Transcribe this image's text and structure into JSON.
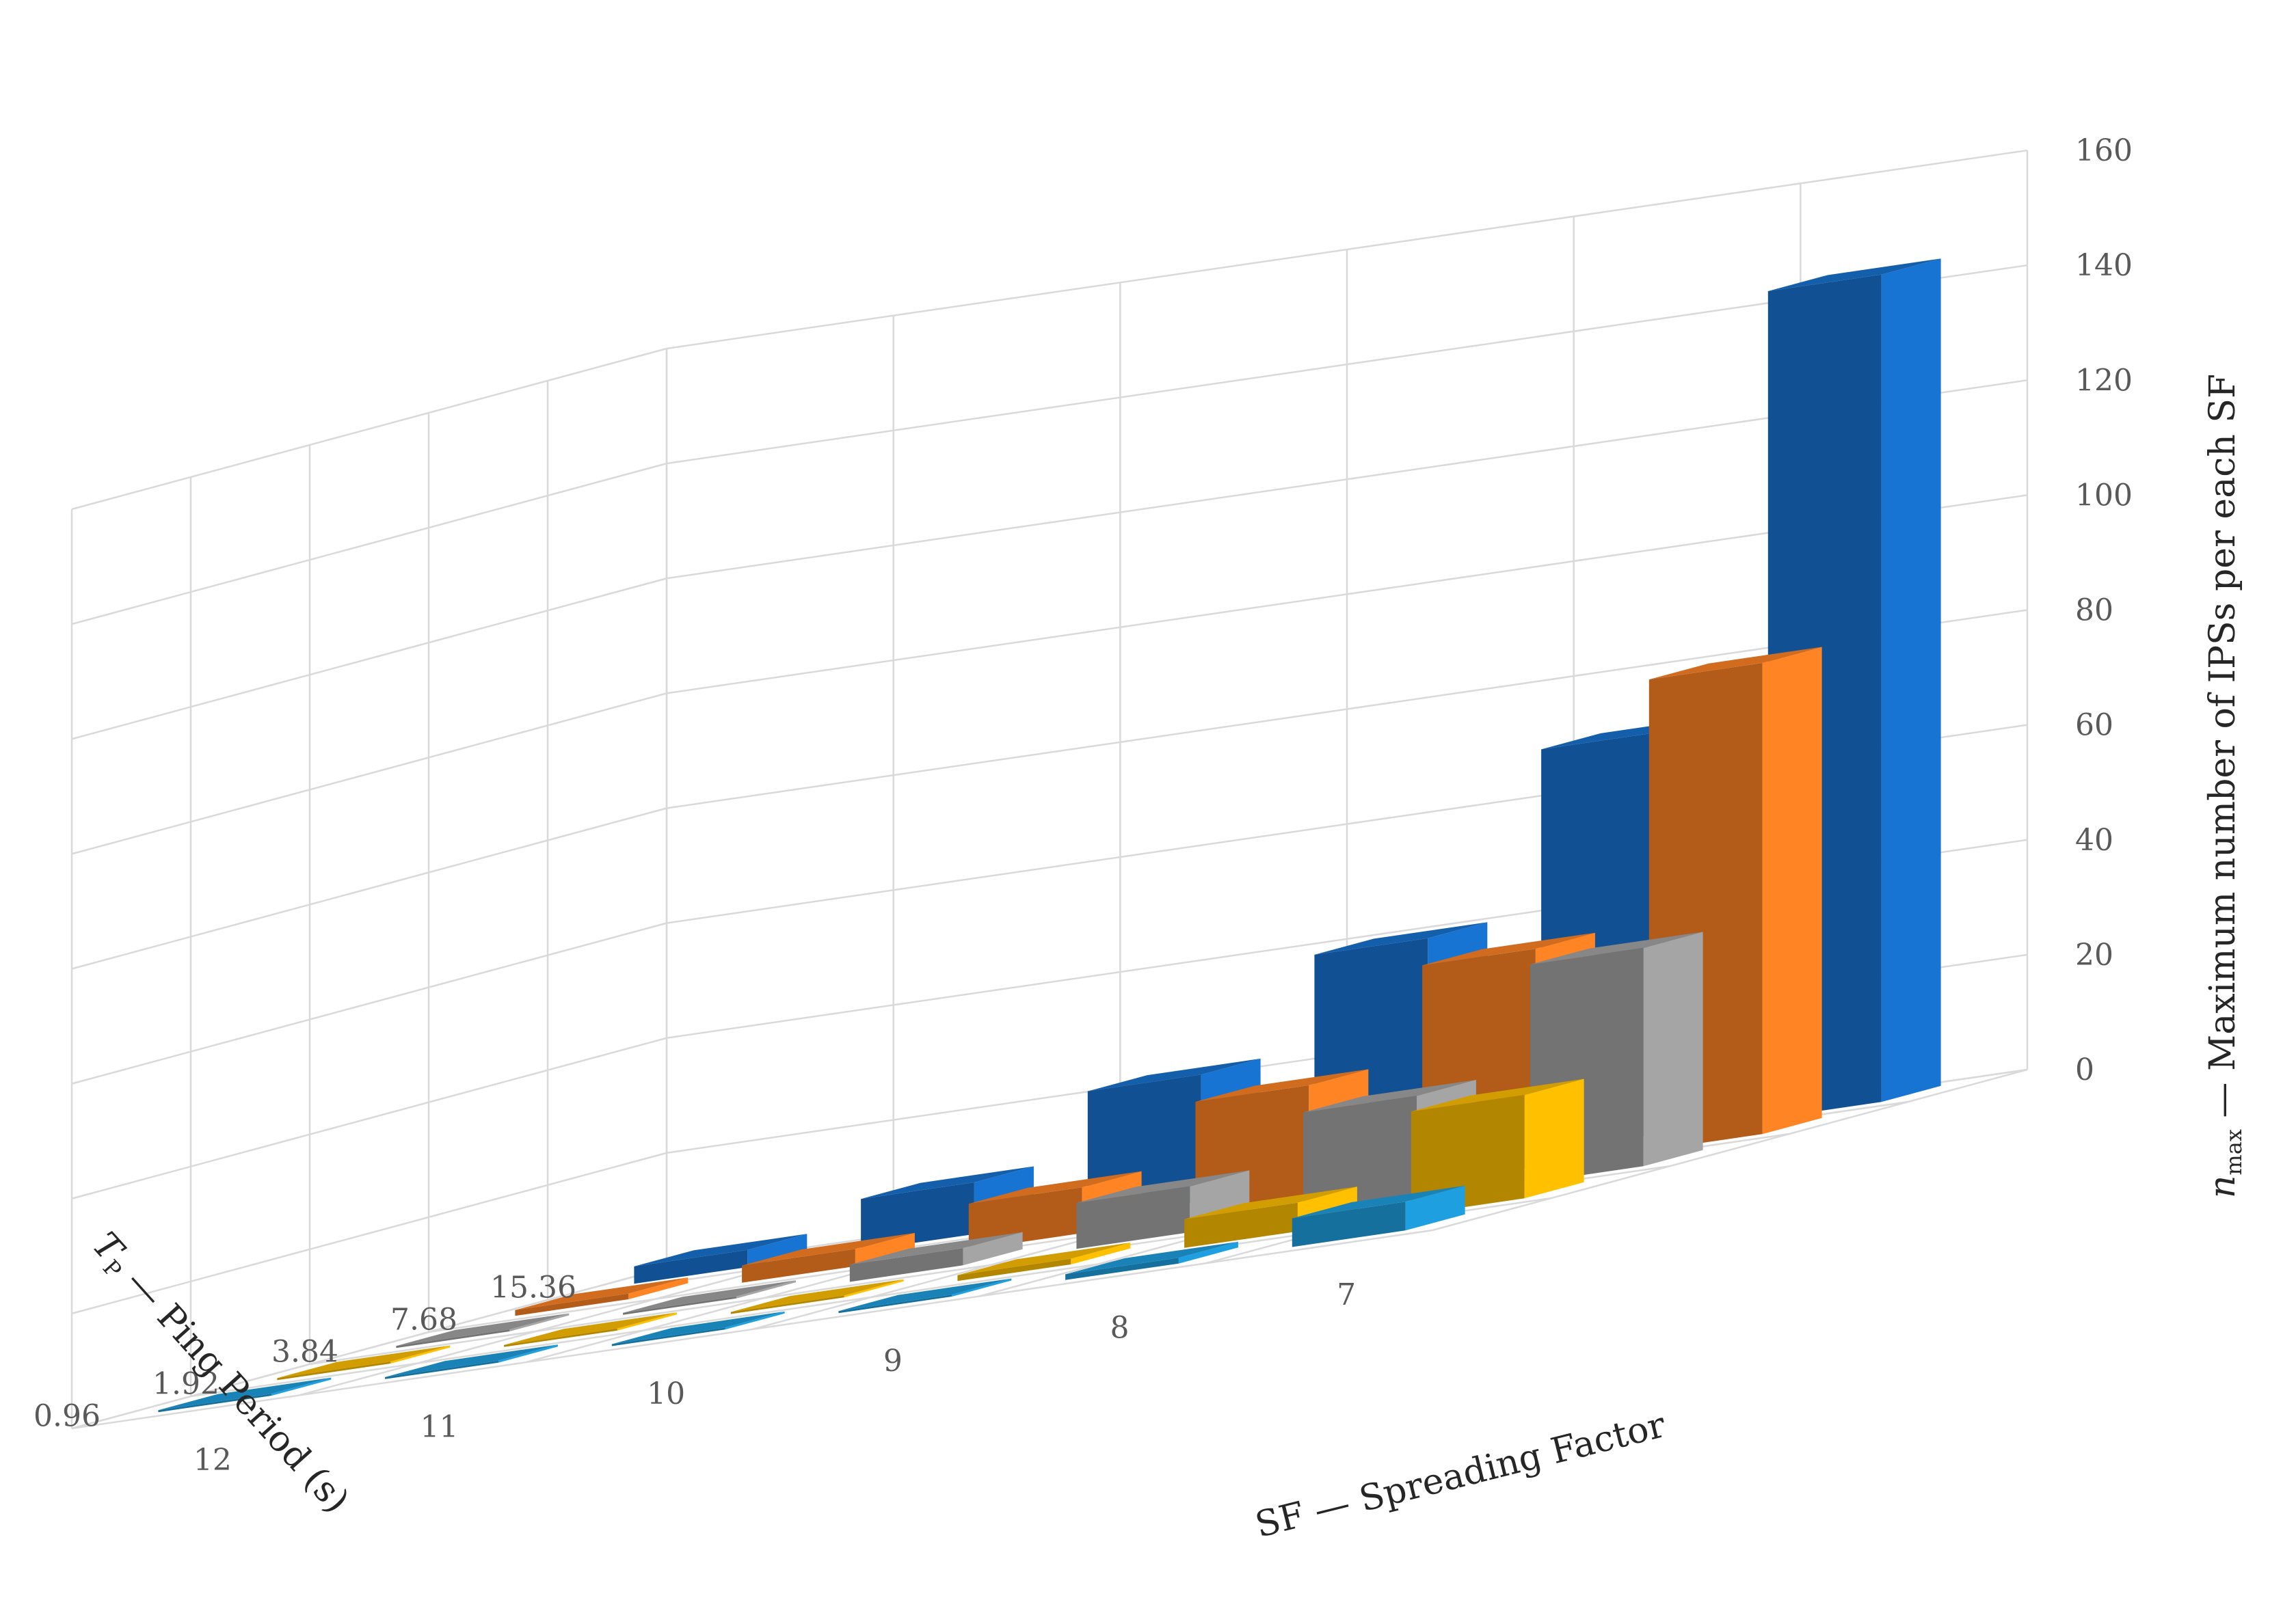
{
  "chart_data": {
    "type": "bar3d",
    "x_axis": {
      "label": "SF — Spreading Factor",
      "categories": [
        "12",
        "11",
        "10",
        "9",
        "8",
        "7"
      ]
    },
    "depth_axis": {
      "label_symbol": "T",
      "label_subscript": "P",
      "label_rest": " — Ping Period (s)",
      "categories": [
        "15.36",
        "7.68",
        "3.84",
        "1.92",
        "0.96"
      ]
    },
    "z_axis": {
      "label_symbol": "n",
      "label_subscript": "max",
      "label_rest": " — Maximum number of IPSs per each SF",
      "ticks": [
        "0",
        "20",
        "40",
        "60",
        "80",
        "100",
        "120",
        "140",
        "160"
      ],
      "range": [
        0,
        160
      ]
    },
    "series": [
      {
        "tp": "15.36",
        "color": "#1874d2",
        "values": [
          3,
          9,
          22,
          40,
          70,
          144
        ]
      },
      {
        "tp": "7.68",
        "color": "#ff8424",
        "values": [
          1,
          3,
          8,
          20,
          38,
          82
        ]
      },
      {
        "tp": "3.84",
        "color": "#a5a5a5",
        "values": [
          0,
          0,
          3,
          8,
          18,
          38
        ]
      },
      {
        "tp": "1.92",
        "color": "#ffc000",
        "values": [
          0,
          0,
          0,
          1,
          5,
          18
        ]
      },
      {
        "tp": "0.96",
        "color": "#1ea0e0",
        "values": [
          0,
          0,
          0,
          0,
          1,
          5
        ]
      }
    ]
  }
}
